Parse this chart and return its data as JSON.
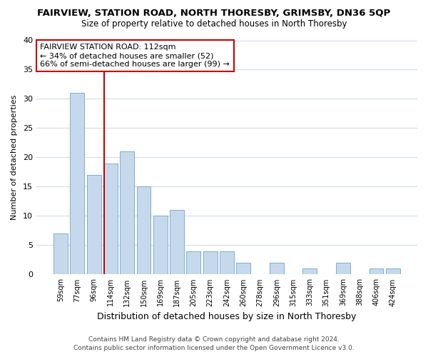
{
  "title": "FAIRVIEW, STATION ROAD, NORTH THORESBY, GRIMSBY, DN36 5QP",
  "subtitle": "Size of property relative to detached houses in North Thoresby",
  "xlabel": "Distribution of detached houses by size in North Thoresby",
  "ylabel": "Number of detached properties",
  "bin_labels": [
    "59sqm",
    "77sqm",
    "96sqm",
    "114sqm",
    "132sqm",
    "150sqm",
    "169sqm",
    "187sqm",
    "205sqm",
    "223sqm",
    "242sqm",
    "260sqm",
    "278sqm",
    "296sqm",
    "315sqm",
    "333sqm",
    "351sqm",
    "369sqm",
    "388sqm",
    "406sqm",
    "424sqm"
  ],
  "bar_heights": [
    7,
    31,
    17,
    19,
    21,
    15,
    10,
    11,
    4,
    4,
    4,
    2,
    0,
    2,
    0,
    1,
    0,
    2,
    0,
    1,
    1
  ],
  "bar_color": "#c6d9ec",
  "bar_edge_color": "#7aaed0",
  "reference_line_label": "FAIRVIEW STATION ROAD: 112sqm",
  "annotation_line1": "← 34% of detached houses are smaller (52)",
  "annotation_line2": "66% of semi-detached houses are larger (99) →",
  "ylim": [
    0,
    40
  ],
  "ref_line_color": "#cc0000",
  "grid_color": "#d0dce8",
  "footer1": "Contains HM Land Registry data © Crown copyright and database right 2024.",
  "footer2": "Contains public sector information licensed under the Open Government Licence v3.0.",
  "bg_color": "#ffffff"
}
